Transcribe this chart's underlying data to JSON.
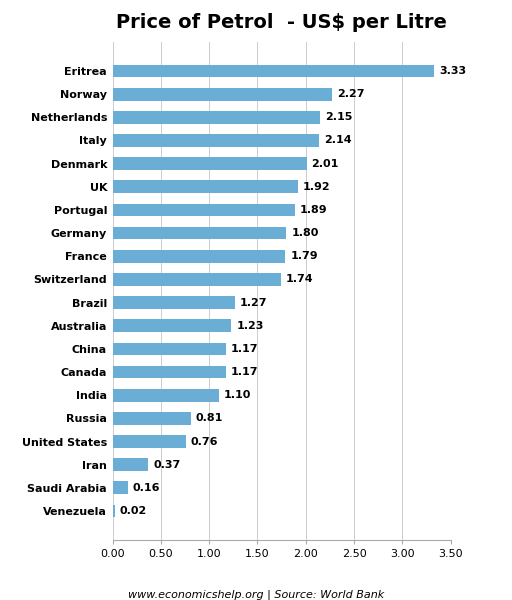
{
  "title": "Price of Petrol  - US$ per Litre",
  "countries": [
    "Venezuela",
    "Saudi Arabia",
    "Iran",
    "United States",
    "Russia",
    "India",
    "Canada",
    "China",
    "Australia",
    "Brazil",
    "Switzerland",
    "France",
    "Germany",
    "Portugal",
    "UK",
    "Denmark",
    "Italy",
    "Netherlands",
    "Norway",
    "Eritrea"
  ],
  "values": [
    0.02,
    0.16,
    0.37,
    0.76,
    0.81,
    1.1,
    1.17,
    1.17,
    1.23,
    1.27,
    1.74,
    1.79,
    1.8,
    1.89,
    1.92,
    2.01,
    2.14,
    2.15,
    2.27,
    3.33
  ],
  "bar_color": "#6aaed6",
  "xlim": [
    0,
    3.5
  ],
  "xticks": [
    0.0,
    0.5,
    1.0,
    1.5,
    2.0,
    2.5,
    3.0,
    3.5
  ],
  "xtick_labels": [
    "0.00",
    "0.50",
    "1.00",
    "1.50",
    "2.00",
    "2.50",
    "3.00",
    "3.50"
  ],
  "footer": "www.economicshelp.org | Source: World Bank",
  "background_color": "#ffffff",
  "grid_color": "#cccccc",
  "title_fontsize": 14,
  "label_fontsize": 8,
  "value_fontsize": 8,
  "footer_fontsize": 8,
  "bar_height": 0.55
}
